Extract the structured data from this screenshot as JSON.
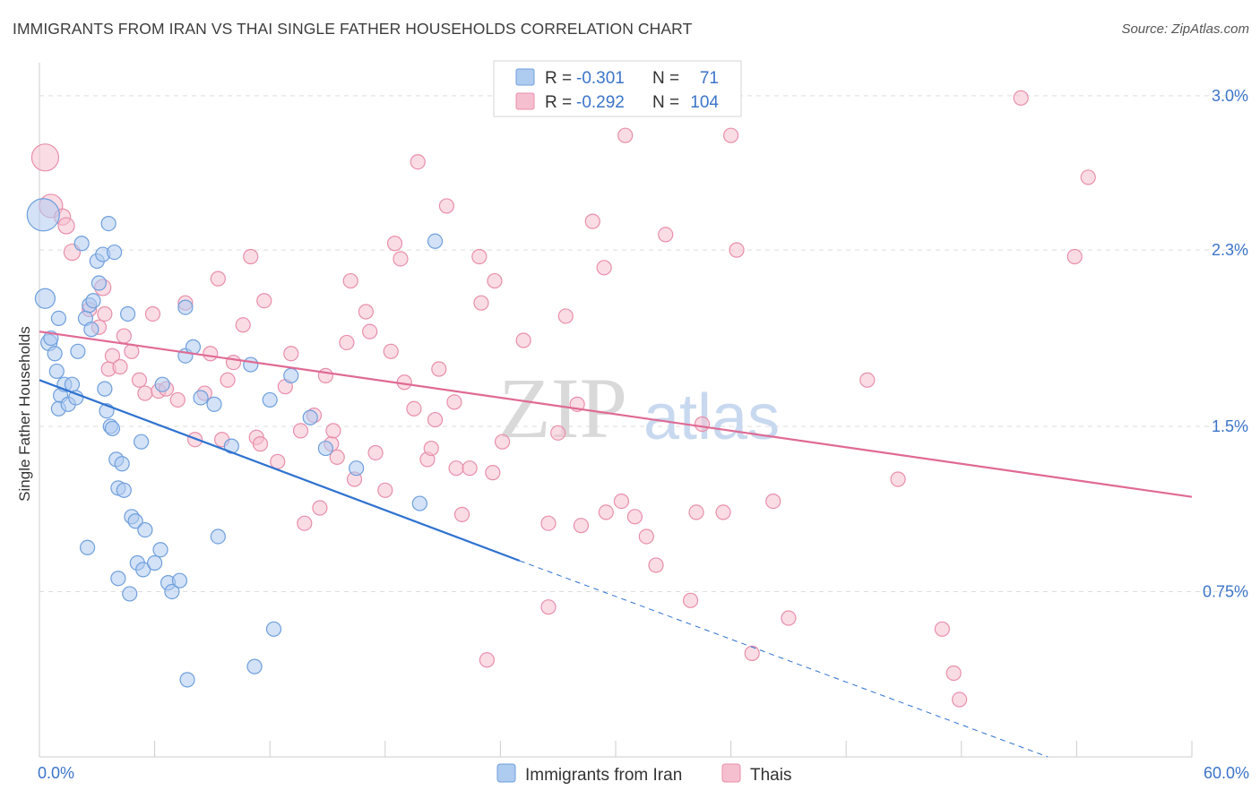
{
  "title": "IMMIGRANTS FROM IRAN VS THAI SINGLE FATHER HOUSEHOLDS CORRELATION CHART",
  "source": "Source: ZipAtlas.com",
  "watermark": {
    "zip": "ZIP",
    "atlas": "atlas"
  },
  "legend": {
    "rows": [
      {
        "r_label": "R =",
        "r_value": "-0.301",
        "n_label": "N =",
        "n_value": "71"
      },
      {
        "r_label": "R =",
        "r_value": "-0.292",
        "n_label": "N =",
        "n_value": "104"
      }
    ]
  },
  "bottom_legend": [
    {
      "label": "Immigrants from Iran"
    },
    {
      "label": "Thais"
    }
  ],
  "colors": {
    "blue_fill": "#aecbf0",
    "blue_stroke": "#6f9fdc",
    "blue_line": "#2f72d0",
    "pink_fill": "#f6bfcf",
    "pink_stroke": "#e88fab",
    "pink_line": "#e06a94",
    "grid": "#dddddd",
    "axis_label": "#3b74c9"
  },
  "chart_data": {
    "type": "scatter",
    "title": "IMMIGRANTS FROM IRAN VS THAI SINGLE FATHER HOUSEHOLDS CORRELATION CHART",
    "xlabel": "",
    "ylabel": "Single Father Households",
    "xlim": [
      0,
      60
    ],
    "ylim": [
      0,
      3.15
    ],
    "x_ticks": [
      "0.0%",
      "60.0%"
    ],
    "y_ticks": [
      {
        "value": 0.75,
        "label": "0.75%"
      },
      {
        "value": 1.5,
        "label": "1.5%"
      },
      {
        "value": 2.3,
        "label": "2.3%"
      },
      {
        "value": 3.0,
        "label": "3.0%"
      }
    ],
    "grid": true,
    "legend_position": "top-center",
    "series": [
      {
        "name": "Immigrants from Iran",
        "color": "#aecbf0",
        "r": -0.301,
        "n": 71,
        "trend": {
          "x0": 0,
          "y0": 1.71,
          "x1": 25,
          "y1": 0.89,
          "dashed_to_x": 52.5,
          "dashed_to_y": 0.0
        },
        "points": [
          {
            "x": 0.2,
            "y": 2.46,
            "s": 18
          },
          {
            "x": 0.3,
            "y": 2.08,
            "s": 11
          },
          {
            "x": 0.5,
            "y": 1.88,
            "s": 9
          },
          {
            "x": 0.6,
            "y": 1.9,
            "s": 8
          },
          {
            "x": 0.8,
            "y": 1.83,
            "s": 8
          },
          {
            "x": 0.9,
            "y": 1.75,
            "s": 8
          },
          {
            "x": 1.0,
            "y": 1.99,
            "s": 8
          },
          {
            "x": 1.1,
            "y": 1.64,
            "s": 8
          },
          {
            "x": 1.0,
            "y": 1.58,
            "s": 8
          },
          {
            "x": 1.3,
            "y": 1.69,
            "s": 8
          },
          {
            "x": 1.5,
            "y": 1.6,
            "s": 8
          },
          {
            "x": 1.7,
            "y": 1.69,
            "s": 8
          },
          {
            "x": 1.9,
            "y": 1.63,
            "s": 8
          },
          {
            "x": 2.0,
            "y": 1.84,
            "s": 8
          },
          {
            "x": 2.2,
            "y": 2.33,
            "s": 8
          },
          {
            "x": 2.4,
            "y": 1.99,
            "s": 8
          },
          {
            "x": 2.6,
            "y": 2.05,
            "s": 8
          },
          {
            "x": 2.8,
            "y": 2.07,
            "s": 8
          },
          {
            "x": 3.0,
            "y": 2.25,
            "s": 8
          },
          {
            "x": 3.1,
            "y": 2.15,
            "s": 8
          },
          {
            "x": 3.3,
            "y": 2.28,
            "s": 8
          },
          {
            "x": 3.4,
            "y": 1.67,
            "s": 8
          },
          {
            "x": 3.5,
            "y": 1.57,
            "s": 8
          },
          {
            "x": 3.6,
            "y": 2.42,
            "s": 8
          },
          {
            "x": 3.7,
            "y": 1.5,
            "s": 8
          },
          {
            "x": 3.8,
            "y": 1.49,
            "s": 8
          },
          {
            "x": 3.9,
            "y": 2.29,
            "s": 8
          },
          {
            "x": 4.0,
            "y": 1.35,
            "s": 8
          },
          {
            "x": 4.1,
            "y": 1.22,
            "s": 8
          },
          {
            "x": 4.3,
            "y": 1.33,
            "s": 8
          },
          {
            "x": 4.4,
            "y": 1.21,
            "s": 8
          },
          {
            "x": 4.6,
            "y": 2.01,
            "s": 8
          },
          {
            "x": 4.8,
            "y": 1.09,
            "s": 8
          },
          {
            "x": 5.0,
            "y": 1.07,
            "s": 8
          },
          {
            "x": 5.1,
            "y": 0.88,
            "s": 8
          },
          {
            "x": 5.3,
            "y": 1.43,
            "s": 8
          },
          {
            "x": 5.4,
            "y": 0.85,
            "s": 8
          },
          {
            "x": 5.5,
            "y": 1.03,
            "s": 8
          },
          {
            "x": 4.1,
            "y": 0.81,
            "s": 8
          },
          {
            "x": 4.7,
            "y": 0.74,
            "s": 8
          },
          {
            "x": 2.5,
            "y": 0.95,
            "s": 8
          },
          {
            "x": 6.0,
            "y": 0.88,
            "s": 8
          },
          {
            "x": 6.3,
            "y": 0.94,
            "s": 8
          },
          {
            "x": 6.7,
            "y": 0.79,
            "s": 8
          },
          {
            "x": 6.9,
            "y": 0.75,
            "s": 8
          },
          {
            "x": 7.3,
            "y": 0.8,
            "s": 8
          },
          {
            "x": 7.6,
            "y": 2.04,
            "s": 8
          },
          {
            "x": 7.6,
            "y": 1.82,
            "s": 8
          },
          {
            "x": 8.0,
            "y": 1.86,
            "s": 8
          },
          {
            "x": 8.4,
            "y": 1.63,
            "s": 8
          },
          {
            "x": 9.1,
            "y": 1.6,
            "s": 8
          },
          {
            "x": 9.3,
            "y": 1.0,
            "s": 8
          },
          {
            "x": 10.0,
            "y": 1.41,
            "s": 8
          },
          {
            "x": 11.0,
            "y": 1.78,
            "s": 8
          },
          {
            "x": 12.0,
            "y": 1.62,
            "s": 8
          },
          {
            "x": 13.1,
            "y": 1.73,
            "s": 8
          },
          {
            "x": 14.1,
            "y": 1.54,
            "s": 8
          },
          {
            "x": 14.9,
            "y": 1.4,
            "s": 8
          },
          {
            "x": 16.5,
            "y": 1.31,
            "s": 8
          },
          {
            "x": 20.6,
            "y": 2.34,
            "s": 8
          },
          {
            "x": 19.8,
            "y": 1.15,
            "s": 8
          },
          {
            "x": 12.2,
            "y": 0.58,
            "s": 8
          },
          {
            "x": 11.2,
            "y": 0.41,
            "s": 8
          },
          {
            "x": 7.7,
            "y": 0.35,
            "s": 8
          },
          {
            "x": 6.4,
            "y": 1.69,
            "s": 8
          },
          {
            "x": 2.7,
            "y": 1.94,
            "s": 8
          }
        ]
      },
      {
        "name": "Thais",
        "color": "#f6bfcf",
        "r": -0.292,
        "n": 104,
        "trend": {
          "x0": 0,
          "y0": 1.93,
          "x1": 60,
          "y1": 1.18
        },
        "points": [
          {
            "x": 0.3,
            "y": 2.72,
            "s": 15
          },
          {
            "x": 0.6,
            "y": 2.5,
            "s": 13
          },
          {
            "x": 1.2,
            "y": 2.45,
            "s": 9
          },
          {
            "x": 1.4,
            "y": 2.41,
            "s": 9
          },
          {
            "x": 1.7,
            "y": 2.29,
            "s": 9
          },
          {
            "x": 3.3,
            "y": 2.13,
            "s": 9
          },
          {
            "x": 2.6,
            "y": 2.03,
            "s": 8
          },
          {
            "x": 3.1,
            "y": 1.95,
            "s": 8
          },
          {
            "x": 3.4,
            "y": 2.01,
            "s": 8
          },
          {
            "x": 3.6,
            "y": 1.76,
            "s": 8
          },
          {
            "x": 3.8,
            "y": 1.82,
            "s": 8
          },
          {
            "x": 4.2,
            "y": 1.77,
            "s": 8
          },
          {
            "x": 4.4,
            "y": 1.91,
            "s": 8
          },
          {
            "x": 4.8,
            "y": 1.84,
            "s": 8
          },
          {
            "x": 5.2,
            "y": 1.71,
            "s": 8
          },
          {
            "x": 5.5,
            "y": 1.65,
            "s": 8
          },
          {
            "x": 5.9,
            "y": 2.01,
            "s": 8
          },
          {
            "x": 6.2,
            "y": 1.66,
            "s": 8
          },
          {
            "x": 6.6,
            "y": 1.67,
            "s": 8
          },
          {
            "x": 7.2,
            "y": 1.62,
            "s": 8
          },
          {
            "x": 7.6,
            "y": 2.06,
            "s": 8
          },
          {
            "x": 8.1,
            "y": 1.44,
            "s": 8
          },
          {
            "x": 8.6,
            "y": 1.65,
            "s": 8
          },
          {
            "x": 8.9,
            "y": 1.83,
            "s": 8
          },
          {
            "x": 9.3,
            "y": 2.17,
            "s": 8
          },
          {
            "x": 9.5,
            "y": 1.44,
            "s": 8
          },
          {
            "x": 9.8,
            "y": 1.71,
            "s": 8
          },
          {
            "x": 10.1,
            "y": 1.79,
            "s": 8
          },
          {
            "x": 10.6,
            "y": 1.96,
            "s": 8
          },
          {
            "x": 11.0,
            "y": 2.27,
            "s": 8
          },
          {
            "x": 11.3,
            "y": 1.45,
            "s": 8
          },
          {
            "x": 11.5,
            "y": 1.42,
            "s": 8
          },
          {
            "x": 11.7,
            "y": 2.07,
            "s": 8
          },
          {
            "x": 12.4,
            "y": 1.34,
            "s": 8
          },
          {
            "x": 12.8,
            "y": 1.68,
            "s": 8
          },
          {
            "x": 13.1,
            "y": 1.83,
            "s": 8
          },
          {
            "x": 13.6,
            "y": 1.48,
            "s": 8
          },
          {
            "x": 13.8,
            "y": 1.06,
            "s": 8
          },
          {
            "x": 14.3,
            "y": 1.55,
            "s": 8
          },
          {
            "x": 14.6,
            "y": 1.13,
            "s": 8
          },
          {
            "x": 14.9,
            "y": 1.73,
            "s": 8
          },
          {
            "x": 15.2,
            "y": 1.42,
            "s": 8
          },
          {
            "x": 15.5,
            "y": 1.36,
            "s": 8
          },
          {
            "x": 15.3,
            "y": 1.48,
            "s": 8
          },
          {
            "x": 16.0,
            "y": 1.88,
            "s": 8
          },
          {
            "x": 16.2,
            "y": 2.16,
            "s": 8
          },
          {
            "x": 16.4,
            "y": 1.26,
            "s": 8
          },
          {
            "x": 17.2,
            "y": 1.93,
            "s": 8
          },
          {
            "x": 17.0,
            "y": 2.02,
            "s": 8
          },
          {
            "x": 17.5,
            "y": 1.38,
            "s": 8
          },
          {
            "x": 18.0,
            "y": 1.21,
            "s": 8
          },
          {
            "x": 18.3,
            "y": 1.84,
            "s": 8
          },
          {
            "x": 18.5,
            "y": 2.33,
            "s": 8
          },
          {
            "x": 18.8,
            "y": 2.26,
            "s": 8
          },
          {
            "x": 19.0,
            "y": 1.7,
            "s": 8
          },
          {
            "x": 19.5,
            "y": 1.58,
            "s": 8
          },
          {
            "x": 19.7,
            "y": 2.7,
            "s": 8
          },
          {
            "x": 20.2,
            "y": 1.35,
            "s": 8
          },
          {
            "x": 20.4,
            "y": 1.4,
            "s": 8
          },
          {
            "x": 20.6,
            "y": 1.53,
            "s": 8
          },
          {
            "x": 20.8,
            "y": 1.76,
            "s": 8
          },
          {
            "x": 21.2,
            "y": 2.5,
            "s": 8
          },
          {
            "x": 21.6,
            "y": 1.61,
            "s": 8
          },
          {
            "x": 21.7,
            "y": 1.31,
            "s": 8
          },
          {
            "x": 22.0,
            "y": 1.1,
            "s": 8
          },
          {
            "x": 22.4,
            "y": 1.31,
            "s": 8
          },
          {
            "x": 22.9,
            "y": 2.27,
            "s": 8
          },
          {
            "x": 23.0,
            "y": 2.06,
            "s": 8
          },
          {
            "x": 23.6,
            "y": 1.29,
            "s": 8
          },
          {
            "x": 23.3,
            "y": 0.44,
            "s": 8
          },
          {
            "x": 23.7,
            "y": 2.16,
            "s": 8
          },
          {
            "x": 24.1,
            "y": 1.43,
            "s": 8
          },
          {
            "x": 25.2,
            "y": 1.89,
            "s": 8
          },
          {
            "x": 26.5,
            "y": 1.06,
            "s": 8
          },
          {
            "x": 26.5,
            "y": 0.68,
            "s": 8
          },
          {
            "x": 27.0,
            "y": 1.47,
            "s": 8
          },
          {
            "x": 27.4,
            "y": 2.0,
            "s": 8
          },
          {
            "x": 28.0,
            "y": 1.6,
            "s": 8
          },
          {
            "x": 28.2,
            "y": 1.05,
            "s": 8
          },
          {
            "x": 28.8,
            "y": 2.43,
            "s": 8
          },
          {
            "x": 29.4,
            "y": 2.22,
            "s": 8
          },
          {
            "x": 29.5,
            "y": 1.11,
            "s": 8
          },
          {
            "x": 30.3,
            "y": 1.16,
            "s": 8
          },
          {
            "x": 30.5,
            "y": 2.82,
            "s": 8
          },
          {
            "x": 31.0,
            "y": 1.09,
            "s": 8
          },
          {
            "x": 31.6,
            "y": 1.0,
            "s": 8
          },
          {
            "x": 32.1,
            "y": 0.87,
            "s": 8
          },
          {
            "x": 32.6,
            "y": 2.37,
            "s": 8
          },
          {
            "x": 33.9,
            "y": 0.71,
            "s": 8
          },
          {
            "x": 34.2,
            "y": 1.11,
            "s": 8
          },
          {
            "x": 34.5,
            "y": 1.51,
            "s": 8
          },
          {
            "x": 35.6,
            "y": 1.11,
            "s": 8
          },
          {
            "x": 36.0,
            "y": 2.82,
            "s": 8
          },
          {
            "x": 36.3,
            "y": 2.3,
            "s": 8
          },
          {
            "x": 37.1,
            "y": 0.47,
            "s": 8
          },
          {
            "x": 38.2,
            "y": 1.16,
            "s": 8
          },
          {
            "x": 39.0,
            "y": 0.63,
            "s": 8
          },
          {
            "x": 43.1,
            "y": 1.71,
            "s": 8
          },
          {
            "x": 44.7,
            "y": 1.26,
            "s": 8
          },
          {
            "x": 47.0,
            "y": 0.58,
            "s": 8
          },
          {
            "x": 47.6,
            "y": 0.38,
            "s": 8
          },
          {
            "x": 47.9,
            "y": 0.26,
            "s": 8
          },
          {
            "x": 51.1,
            "y": 2.99,
            "s": 8
          },
          {
            "x": 53.9,
            "y": 2.27,
            "s": 8
          },
          {
            "x": 54.6,
            "y": 2.63,
            "s": 8
          }
        ]
      }
    ]
  }
}
